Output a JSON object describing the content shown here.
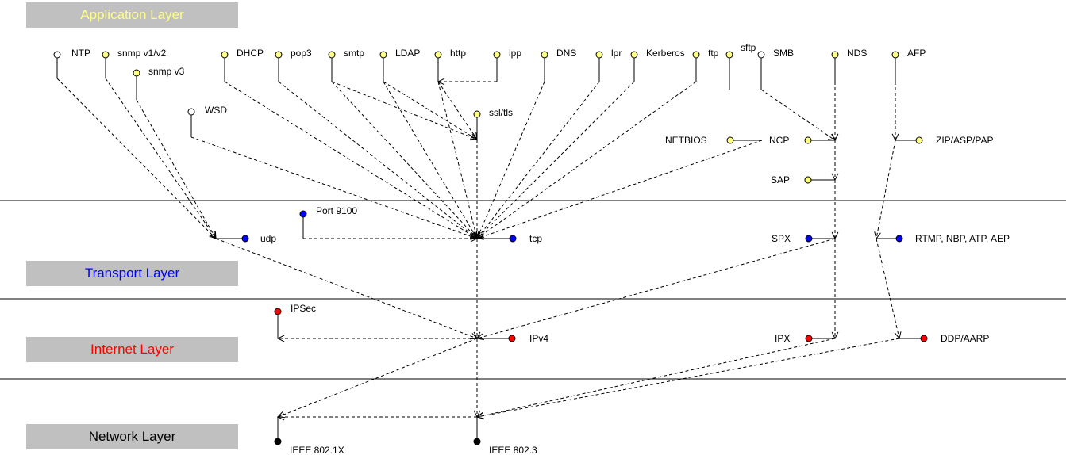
{
  "layers": [
    {
      "id": "application",
      "label": "Application Layer",
      "color": "#ffff80"
    },
    {
      "id": "transport",
      "label": "Transport Layer",
      "color": "#0000ff"
    },
    {
      "id": "internet",
      "label": "Internet Layer",
      "color": "#ff0000"
    },
    {
      "id": "network",
      "label": "Network Layer",
      "color": "#000000"
    }
  ],
  "node_colors": {
    "white": "#ffffff",
    "yellow": "#ffff80",
    "blue": "#0000ff",
    "red": "#ff0000",
    "black": "#000000"
  },
  "nodes": [
    {
      "id": "ntp",
      "label": "NTP",
      "fill": "white"
    },
    {
      "id": "snmp12",
      "label": "snmp v1/v2",
      "fill": "yellow"
    },
    {
      "id": "snmp3",
      "label": "snmp v3",
      "fill": "yellow"
    },
    {
      "id": "wsd",
      "label": "WSD",
      "fill": "white"
    },
    {
      "id": "dhcp",
      "label": "DHCP",
      "fill": "yellow"
    },
    {
      "id": "pop3",
      "label": "pop3",
      "fill": "yellow"
    },
    {
      "id": "smtp",
      "label": "smtp",
      "fill": "yellow"
    },
    {
      "id": "ldap",
      "label": "LDAP",
      "fill": "yellow"
    },
    {
      "id": "http",
      "label": "http",
      "fill": "yellow"
    },
    {
      "id": "ipp",
      "label": "ipp",
      "fill": "yellow"
    },
    {
      "id": "dns",
      "label": "DNS",
      "fill": "yellow"
    },
    {
      "id": "lpr",
      "label": "lpr",
      "fill": "yellow"
    },
    {
      "id": "kerberos",
      "label": "Kerberos",
      "fill": "yellow"
    },
    {
      "id": "ftp",
      "label": "ftp",
      "fill": "yellow"
    },
    {
      "id": "sftp",
      "label": "sftp",
      "fill": "yellow"
    },
    {
      "id": "smb",
      "label": "SMB",
      "fill": "white"
    },
    {
      "id": "nds",
      "label": "NDS",
      "fill": "yellow"
    },
    {
      "id": "afp",
      "label": "AFP",
      "fill": "yellow"
    },
    {
      "id": "ssltls",
      "label": "ssl/tls",
      "fill": "yellow"
    },
    {
      "id": "netbios",
      "label": "NETBIOS",
      "fill": "yellow"
    },
    {
      "id": "ncp",
      "label": "NCP",
      "fill": "yellow"
    },
    {
      "id": "zip",
      "label": "ZIP/ASP/PAP",
      "fill": "yellow"
    },
    {
      "id": "sap",
      "label": "SAP",
      "fill": "yellow"
    },
    {
      "id": "port9100",
      "label": "Port 9100",
      "fill": "blue"
    },
    {
      "id": "udp",
      "label": "udp",
      "fill": "blue"
    },
    {
      "id": "tcp",
      "label": "tcp",
      "fill": "blue"
    },
    {
      "id": "spx",
      "label": "SPX",
      "fill": "blue"
    },
    {
      "id": "rtmp",
      "label": "RTMP, NBP, ATP, AEP",
      "fill": "blue"
    },
    {
      "id": "ipsec",
      "label": "IPSec",
      "fill": "red"
    },
    {
      "id": "ipv4",
      "label": "IPv4",
      "fill": "red"
    },
    {
      "id": "ipx",
      "label": "IPX",
      "fill": "red"
    },
    {
      "id": "ddp",
      "label": "DDP/AARP",
      "fill": "red"
    },
    {
      "id": "ieee8021x",
      "label": "IEEE 802.1X",
      "fill": "black"
    },
    {
      "id": "ieee8023",
      "label": "IEEE 802.3",
      "fill": "black"
    }
  ],
  "edges": [
    {
      "from": "ntp",
      "to": "udp"
    },
    {
      "from": "snmp12",
      "to": "udp"
    },
    {
      "from": "snmp3",
      "to": "udp"
    },
    {
      "from": "wsd",
      "to": "tcp"
    },
    {
      "from": "dhcp",
      "to": "tcp"
    },
    {
      "from": "pop3",
      "to": "tcp"
    },
    {
      "from": "smtp",
      "to": "tcp"
    },
    {
      "from": "smtp",
      "to": "ssltls"
    },
    {
      "from": "ldap",
      "to": "tcp"
    },
    {
      "from": "ldap",
      "to": "ssltls"
    },
    {
      "from": "http",
      "to": "tcp"
    },
    {
      "from": "http",
      "to": "ssltls"
    },
    {
      "from": "ipp",
      "to": "http"
    },
    {
      "from": "dns",
      "to": "tcp"
    },
    {
      "from": "lpr",
      "to": "tcp"
    },
    {
      "from": "kerberos",
      "to": "tcp"
    },
    {
      "from": "ftp",
      "to": "tcp"
    },
    {
      "from": "ssltls",
      "to": "tcp"
    },
    {
      "from": "smb",
      "to": "ncp"
    },
    {
      "from": "netbios",
      "to": "tcp"
    },
    {
      "from": "nds",
      "to": "ncp"
    },
    {
      "from": "ncp",
      "to": "sap"
    },
    {
      "from": "sap",
      "to": "spx"
    },
    {
      "from": "afp",
      "to": "zip"
    },
    {
      "from": "zip",
      "to": "rtmp"
    },
    {
      "from": "port9100",
      "to": "tcp"
    },
    {
      "from": "udp",
      "to": "ipv4"
    },
    {
      "from": "tcp",
      "to": "ipv4"
    },
    {
      "from": "spx",
      "to": "ipx"
    },
    {
      "from": "spx",
      "to": "ipv4"
    },
    {
      "from": "rtmp",
      "to": "ddp"
    },
    {
      "from": "ipv4",
      "to": "ipsec"
    },
    {
      "from": "ipv4",
      "to": "ieee8023"
    },
    {
      "from": "ipv4",
      "to": "ieee8021x"
    },
    {
      "from": "ieee8023",
      "to": "ieee8021x"
    },
    {
      "from": "ipx",
      "to": "ieee8023"
    },
    {
      "from": "ddp",
      "to": "ieee8023"
    }
  ]
}
